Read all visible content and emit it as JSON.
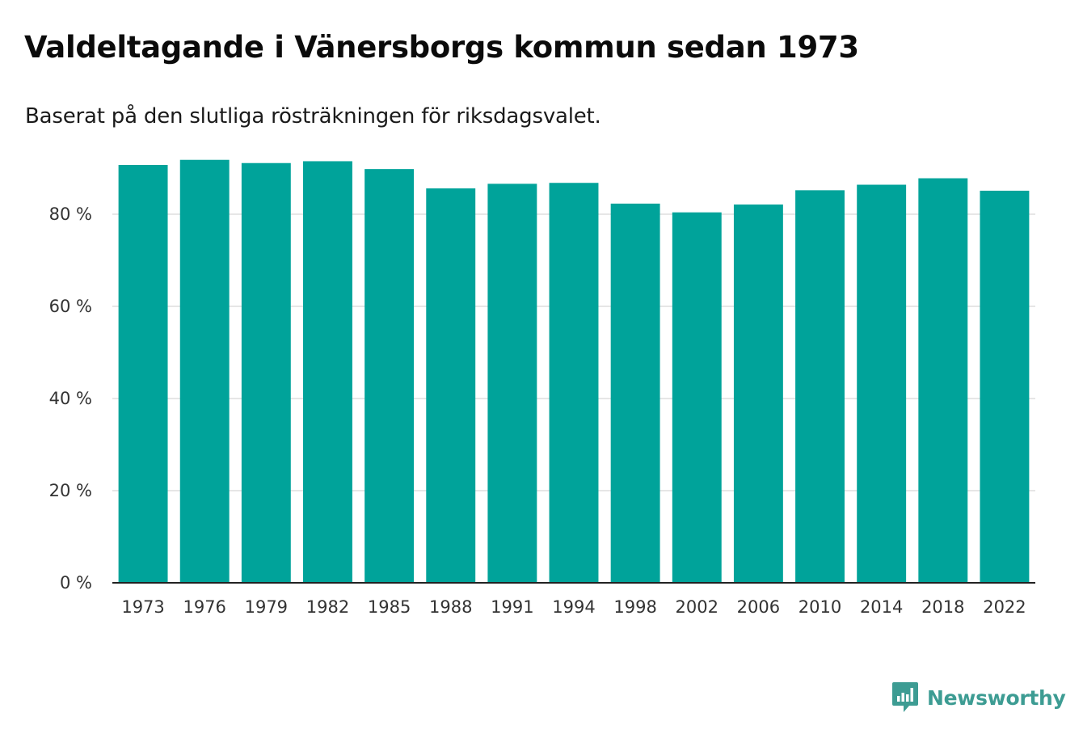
{
  "header": {
    "title": "Valdeltagande i Vänersborgs kommun sedan 1973",
    "subtitle": "Baserat på den slutliga rösträkningen för riksdagsvalet."
  },
  "brand": {
    "name": "Newsworthy",
    "color": "#3d9c93"
  },
  "colors": {
    "bar": "#00a39a",
    "grid": "#dddddd",
    "axis": "#222222"
  },
  "chart_data": {
    "type": "bar",
    "categories": [
      "1973",
      "1976",
      "1979",
      "1982",
      "1985",
      "1988",
      "1991",
      "1994",
      "1998",
      "2002",
      "2006",
      "2010",
      "2014",
      "2018",
      "2022"
    ],
    "values": [
      90.7,
      91.8,
      91.1,
      91.5,
      89.8,
      85.6,
      86.6,
      86.8,
      82.3,
      80.4,
      82.1,
      85.2,
      86.4,
      87.8,
      85.1
    ],
    "title": "Valdeltagande i Vänersborgs kommun sedan 1973",
    "xlabel": "",
    "ylabel": "",
    "ylim": [
      0,
      100
    ],
    "yticks": [
      0,
      20,
      40,
      60,
      80
    ],
    "ytick_labels": [
      "0 %",
      "20 %",
      "40 %",
      "60 %",
      "80 %"
    ],
    "grid": true,
    "legend": "none"
  }
}
